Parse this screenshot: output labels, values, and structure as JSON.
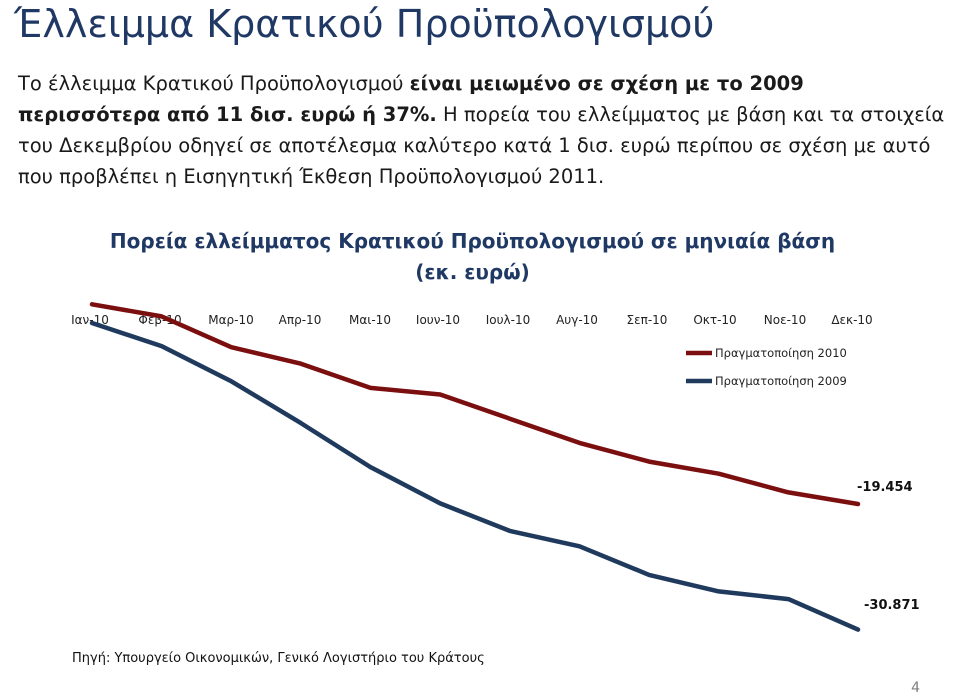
{
  "slide": {
    "title": "Έλλειμμα Κρατικού Προϋπολογισμού",
    "intro_normal_1": "Το έλλειμμα Κρατικού Προϋπολογισμού ",
    "intro_bold": "είναι μειωμένο σε σχέση με το 2009 περισσότερα από 11 δισ. ευρώ ή 37%.",
    "intro_normal_2": " Η πορεία του ελλείμματος με βάση και τα στοιχεία του Δεκεμβρίου οδηγεί σε αποτέλεσμα καλύτερο κατά 1 δισ. ευρώ περίπου σε σχέση με αυτό που προβλέπει η Εισηγητική Έκθεση Προϋπολογισμού 2011.",
    "source": "Πηγή: Υπουργείο Οικονομικών, Γενικό Λογιστήριο του Κράτους",
    "page_number": "4"
  },
  "chart_data": {
    "type": "line",
    "title": "Πορεία ελλείμματος Κρατικού Προϋπολογισμού σε μηνιαία βάση (εκ. ευρώ)",
    "categories": [
      "Ιαν-10",
      "Φεβ-10",
      "Μαρ-10",
      "Απρ-10",
      "Μαι-10",
      "Ιουν-10",
      "Ιουλ-10",
      "Αυγ-10",
      "Σεπ-10",
      "Οκτ-10",
      "Νοε-10",
      "Δεκ-10"
    ],
    "ylim": [
      -32000,
      0
    ],
    "x_axis_position": "top",
    "legend_position": "right",
    "series": [
      {
        "name": "Πραγματοποίηση 2010",
        "color": "#7b0f0f",
        "values": [
          -1300,
          -2400,
          -5200,
          -6700,
          -8900,
          -9500,
          -11700,
          -13900,
          -15600,
          -16700,
          -18400,
          -19454
        ],
        "end_label": "-19.454"
      },
      {
        "name": "Πραγματοποίηση 2009",
        "color": "#1f3a5c",
        "values": [
          -3000,
          -5100,
          -8300,
          -12100,
          -16100,
          -19400,
          -21900,
          -23300,
          -25900,
          -27400,
          -28100,
          -30871
        ],
        "end_label": "-30.871"
      }
    ]
  }
}
